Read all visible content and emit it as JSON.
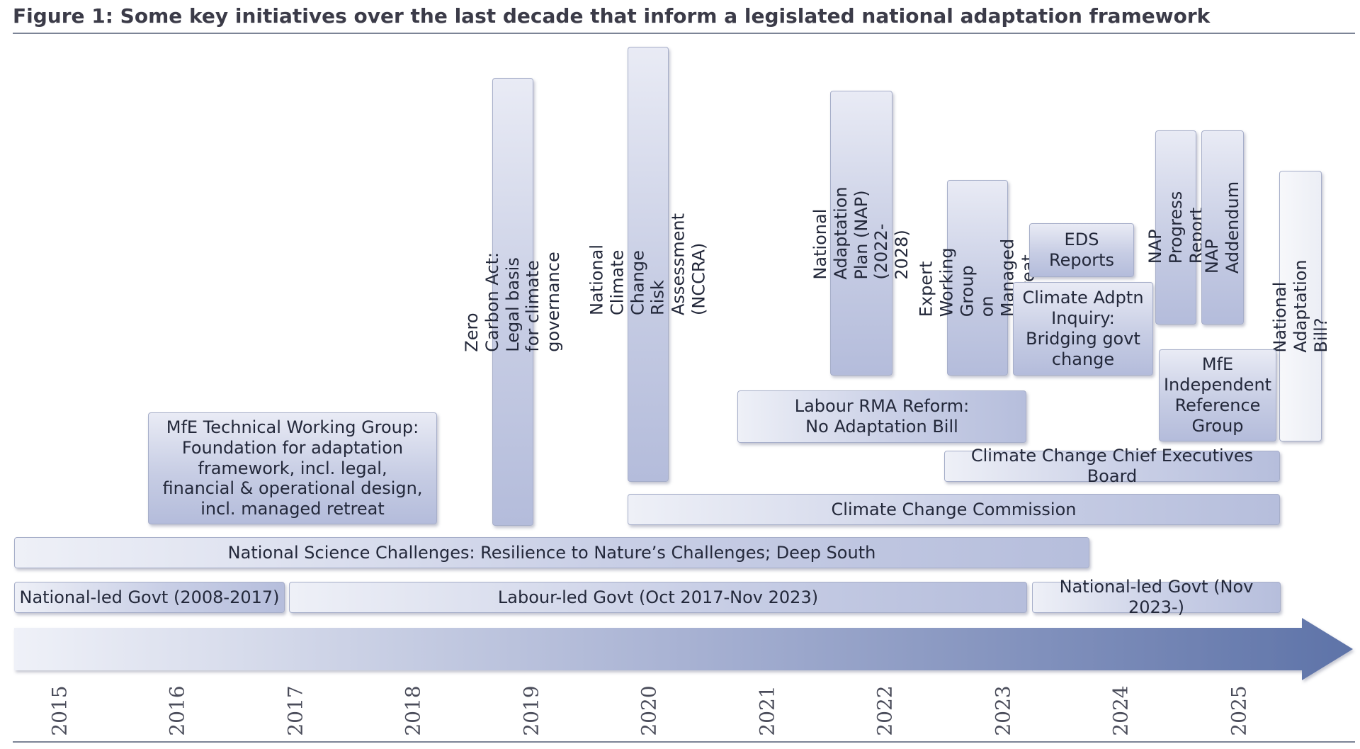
{
  "title": "Figure 1: Some key initiatives over the last decade that inform a legislated national adaptation framework",
  "colors": {
    "arrow_start": "#eff1f8",
    "arrow_end": "#5e73a8",
    "box_light": "#e9ebf5",
    "box_dark": "#b4bcdb"
  },
  "initiatives": {
    "mfe_twg": "MfE Technical Working Group:\nFoundation for adaptation\nframework, incl. legal,\nfinancial & operational design,\nincl. managed retreat",
    "zero_carbon": "Zero Carbon Act: Legal basis for climate  governance",
    "nccra": "National Climate Change Risk Assessment (NCCRA)",
    "nap": "National Adaptation Plan (NAP)\n(2022-2028)",
    "expert_wg": "Expert Working Group\non Managed Retreat",
    "eds": "EDS\nReports",
    "inquiry": "Climate Adptn\nInquiry:\nBridging govt\nchange",
    "nap_progress": "NAP Progress Report",
    "nap_addendum": "NAP Addendum",
    "nab": "National Adaptation Bill?",
    "labour_rma": "Labour RMA Reform:\nNo Adaptation Bill",
    "mfe_irg": "MfE\nIndependent\nReference\nGroup",
    "cccb": "Climate Change Chief Executives Board",
    "ccc": "Climate Change Commission",
    "nsc": "National Science Challenges: Resilience to Nature’s Challenges; Deep South"
  },
  "governments": {
    "national_1": "National-led Govt (2008-2017)",
    "labour": "Labour-led Govt (Oct 2017-Nov 2023)",
    "national_2": "National-led Govt (Nov 2023-)"
  },
  "years": [
    "2015",
    "2016",
    "2017",
    "2018",
    "2019",
    "2020",
    "2021",
    "2022",
    "2023",
    "2024",
    "2025"
  ]
}
